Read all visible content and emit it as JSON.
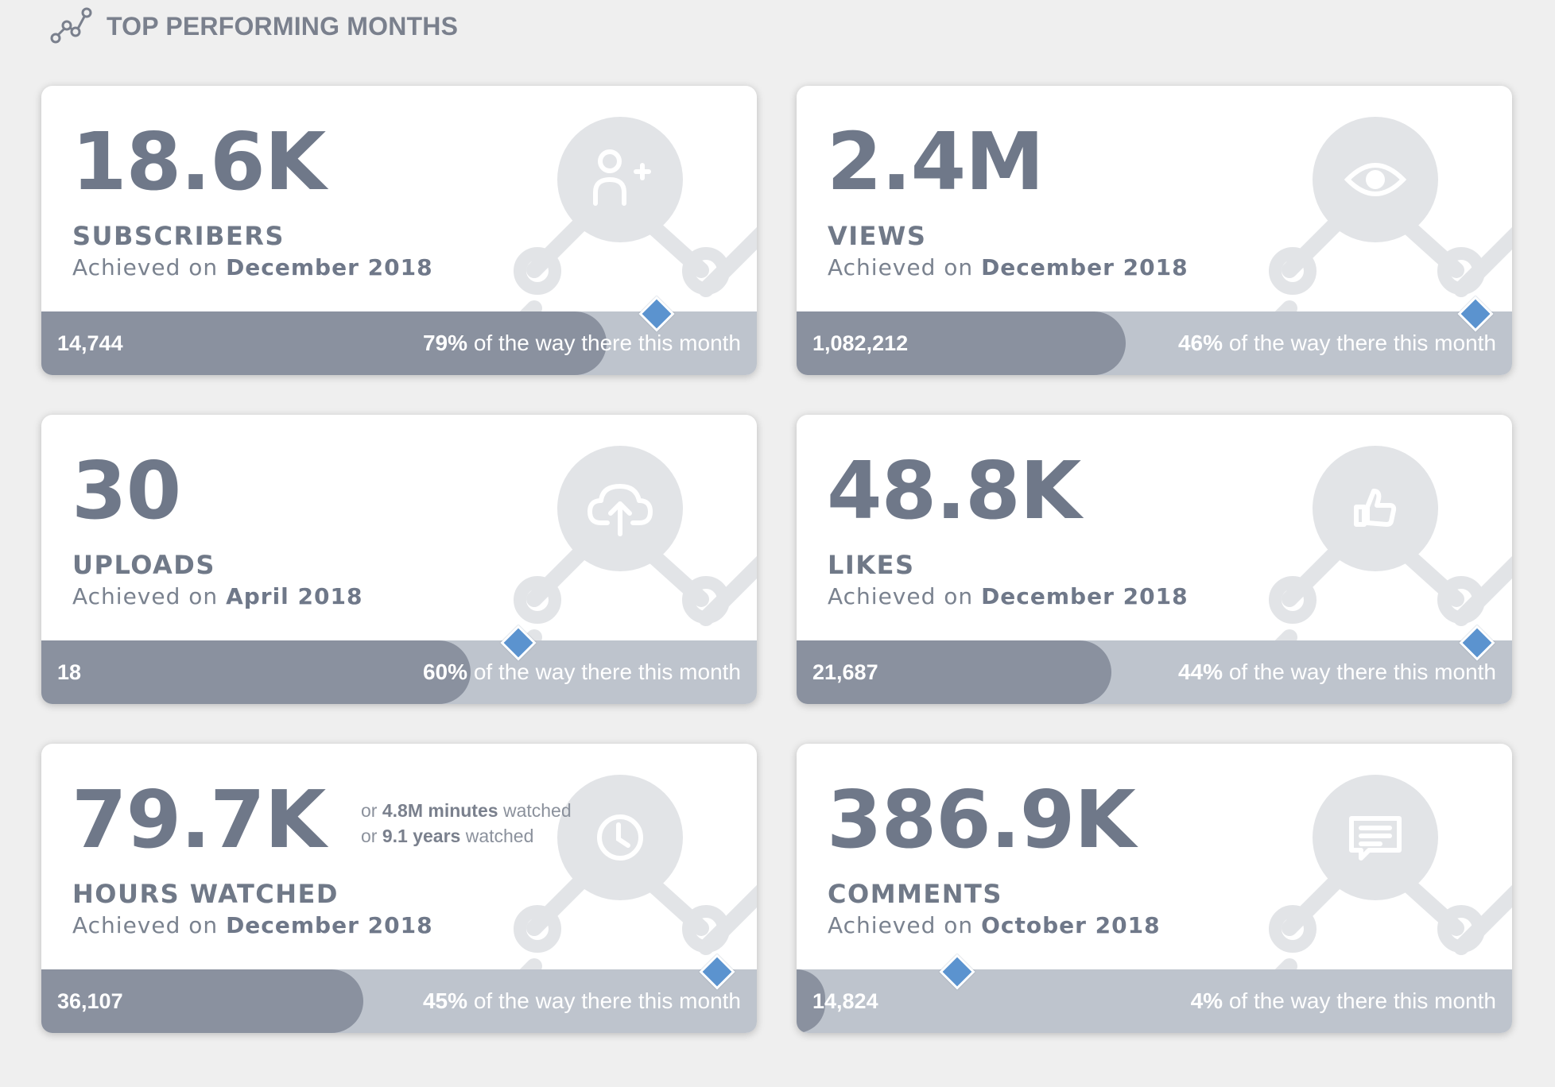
{
  "header": {
    "title": "TOP PERFORMING MONTHS",
    "icon": "line-chart-icon"
  },
  "cards": [
    {
      "value": "18.6K",
      "label": "SUBSCRIBERS",
      "achieved_prefix": "Achieved on",
      "achieved_date": "December 2018",
      "count": "14,744",
      "percent": 79,
      "percent_label": "79%",
      "progress_suffix": "of the way there this month",
      "icon": "add-user-icon"
    },
    {
      "value": "2.4M",
      "label": "VIEWS",
      "achieved_prefix": "Achieved on",
      "achieved_date": "December 2018",
      "count": "1,082,212",
      "percent": 46,
      "percent_label": "46%",
      "progress_suffix": "of the way there this month",
      "icon": "eye-icon"
    },
    {
      "value": "30",
      "label": "UPLOADS",
      "achieved_prefix": "Achieved on",
      "achieved_date": "April 2018",
      "count": "18",
      "percent": 60,
      "percent_label": "60%",
      "progress_suffix": "of the way there this month",
      "icon": "cloud-upload-icon"
    },
    {
      "value": "48.8K",
      "label": "LIKES",
      "achieved_prefix": "Achieved on",
      "achieved_date": "December 2018",
      "count": "21,687",
      "percent": 44,
      "percent_label": "44%",
      "progress_suffix": "of the way there this month",
      "icon": "thumbs-up-icon"
    },
    {
      "value": "79.7K",
      "label": "HOURS WATCHED",
      "achieved_prefix": "Achieved on",
      "achieved_date": "December 2018",
      "count": "36,107",
      "percent": 45,
      "percent_label": "45%",
      "progress_suffix": "of the way there this month",
      "icon": "clock-icon",
      "extra": {
        "line1_prefix": "or",
        "line1_value": "4.8M minutes",
        "line1_suffix": "watched",
        "line2_prefix": "or",
        "line2_value": "9.1 years",
        "line2_suffix": "watched"
      }
    },
    {
      "value": "386.9K",
      "label": "COMMENTS",
      "achieved_prefix": "Achieved on",
      "achieved_date": "October 2018",
      "count": "14,824",
      "percent": 4,
      "percent_label": "4%",
      "progress_suffix": "of the way there this month",
      "icon": "comment-icon"
    }
  ],
  "colors": {
    "marker": "#5b93cf",
    "bar_fill": "#8a919f",
    "bar_track": "#bec4cd",
    "text": "#6f7889"
  }
}
